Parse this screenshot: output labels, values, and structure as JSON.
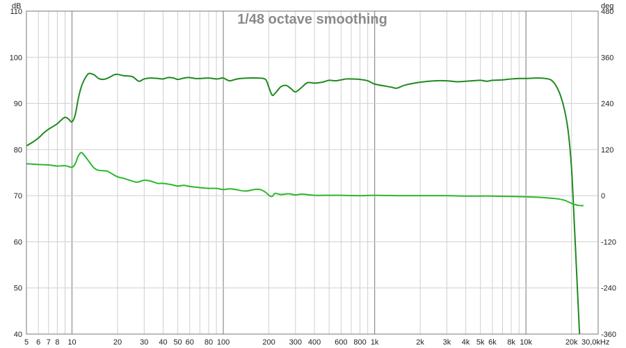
{
  "chart_data": {
    "type": "line",
    "title": "1/48 octave smoothing",
    "x_scale": "log",
    "xlim": [
      5,
      30000
    ],
    "ylim_left": [
      40,
      110
    ],
    "ylim_right": [
      -360,
      480
    ],
    "left_unit": "dB",
    "right_unit": "deg",
    "grid": true,
    "x_ticks": [
      {
        "v": 5,
        "l": "5"
      },
      {
        "v": 6,
        "l": "6"
      },
      {
        "v": 7,
        "l": "7"
      },
      {
        "v": 8,
        "l": "8"
      },
      {
        "v": 10,
        "l": "10"
      },
      {
        "v": 20,
        "l": "20"
      },
      {
        "v": 30,
        "l": "30"
      },
      {
        "v": 40,
        "l": "40"
      },
      {
        "v": 50,
        "l": "50"
      },
      {
        "v": 60,
        "l": "60"
      },
      {
        "v": 80,
        "l": "80"
      },
      {
        "v": 100,
        "l": "100"
      },
      {
        "v": 200,
        "l": "200"
      },
      {
        "v": 300,
        "l": "300"
      },
      {
        "v": 400,
        "l": "400"
      },
      {
        "v": 600,
        "l": "600"
      },
      {
        "v": 800,
        "l": "800"
      },
      {
        "v": 1000,
        "l": "1k"
      },
      {
        "v": 2000,
        "l": "2k"
      },
      {
        "v": 3000,
        "l": "3k"
      },
      {
        "v": 4000,
        "l": "4k"
      },
      {
        "v": 5000,
        "l": "5k"
      },
      {
        "v": 6000,
        "l": "6k"
      },
      {
        "v": 8000,
        "l": "8k"
      },
      {
        "v": 10000,
        "l": "10k"
      },
      {
        "v": 20000,
        "l": "20k"
      },
      {
        "v": 30000,
        "l": "30,0kHz"
      }
    ],
    "y_ticks_left": [
      "40",
      "50",
      "60",
      "70",
      "80",
      "90",
      "100",
      "110"
    ],
    "y_ticks_right": [
      "-360",
      "-240",
      "-120",
      "0",
      "120",
      "240",
      "360",
      "480"
    ],
    "series": [
      {
        "axis": "left",
        "color": "#1e8a1e",
        "points": [
          [
            5,
            80.8
          ],
          [
            5.5,
            81.6
          ],
          [
            6,
            82.5
          ],
          [
            6.5,
            83.6
          ],
          [
            7,
            84.4
          ],
          [
            7.5,
            85.0
          ],
          [
            8,
            85.6
          ],
          [
            8.5,
            86.4
          ],
          [
            9,
            87.0
          ],
          [
            9.5,
            86.6
          ],
          [
            10,
            86.0
          ],
          [
            10.5,
            87.5
          ],
          [
            11,
            91.0
          ],
          [
            11.5,
            93.5
          ],
          [
            12,
            95.0
          ],
          [
            12.5,
            96.0
          ],
          [
            13,
            96.5
          ],
          [
            14,
            96.2
          ],
          [
            15,
            95.4
          ],
          [
            16,
            95.2
          ],
          [
            17,
            95.4
          ],
          [
            18,
            95.8
          ],
          [
            19,
            96.2
          ],
          [
            20,
            96.3
          ],
          [
            22,
            96.0
          ],
          [
            25,
            95.8
          ],
          [
            27,
            95.0
          ],
          [
            28,
            94.8
          ],
          [
            30,
            95.3
          ],
          [
            33,
            95.5
          ],
          [
            37,
            95.4
          ],
          [
            40,
            95.3
          ],
          [
            43,
            95.6
          ],
          [
            47,
            95.5
          ],
          [
            50,
            95.2
          ],
          [
            55,
            95.5
          ],
          [
            60,
            95.6
          ],
          [
            65,
            95.4
          ],
          [
            70,
            95.4
          ],
          [
            80,
            95.5
          ],
          [
            90,
            95.3
          ],
          [
            95,
            95.4
          ],
          [
            100,
            95.5
          ],
          [
            110,
            94.9
          ],
          [
            120,
            95.2
          ],
          [
            130,
            95.4
          ],
          [
            150,
            95.5
          ],
          [
            170,
            95.5
          ],
          [
            190,
            95.2
          ],
          [
            200,
            93.5
          ],
          [
            210,
            91.8
          ],
          [
            220,
            92.2
          ],
          [
            240,
            93.6
          ],
          [
            260,
            93.9
          ],
          [
            280,
            93.2
          ],
          [
            300,
            92.5
          ],
          [
            330,
            93.5
          ],
          [
            360,
            94.5
          ],
          [
            400,
            94.4
          ],
          [
            450,
            94.6
          ],
          [
            500,
            95.0
          ],
          [
            550,
            94.9
          ],
          [
            600,
            95.1
          ],
          [
            650,
            95.3
          ],
          [
            700,
            95.3
          ],
          [
            800,
            95.2
          ],
          [
            900,
            94.9
          ],
          [
            1000,
            94.2
          ],
          [
            1200,
            93.7
          ],
          [
            1300,
            93.5
          ],
          [
            1400,
            93.3
          ],
          [
            1600,
            94.0
          ],
          [
            2000,
            94.6
          ],
          [
            2500,
            94.9
          ],
          [
            3000,
            94.9
          ],
          [
            3500,
            94.7
          ],
          [
            4000,
            94.8
          ],
          [
            5000,
            95.0
          ],
          [
            5500,
            94.8
          ],
          [
            6000,
            95.0
          ],
          [
            7000,
            95.1
          ],
          [
            8000,
            95.3
          ],
          [
            9000,
            95.4
          ],
          [
            10000,
            95.4
          ],
          [
            12000,
            95.5
          ],
          [
            14000,
            95.3
          ],
          [
            15000,
            94.8
          ],
          [
            16000,
            93.5
          ],
          [
            17000,
            91.5
          ],
          [
            18000,
            88.5
          ],
          [
            19000,
            84.0
          ],
          [
            20000,
            76.0
          ],
          [
            21000,
            62.0
          ],
          [
            22000,
            48.0
          ],
          [
            22600,
            40.0
          ]
        ]
      },
      {
        "axis": "right",
        "color": "#2ab82a",
        "points": [
          [
            5,
            83
          ],
          [
            6,
            81
          ],
          [
            7,
            80
          ],
          [
            8,
            77
          ],
          [
            9,
            78
          ],
          [
            10,
            74
          ],
          [
            10.5,
            83
          ],
          [
            11,
            103
          ],
          [
            11.5,
            112
          ],
          [
            12,
            106
          ],
          [
            13,
            88
          ],
          [
            14,
            72
          ],
          [
            15,
            66
          ],
          [
            17,
            64
          ],
          [
            18,
            59
          ],
          [
            20,
            49
          ],
          [
            22,
            45
          ],
          [
            25,
            38
          ],
          [
            27,
            35
          ],
          [
            30,
            40
          ],
          [
            33,
            38
          ],
          [
            37,
            32
          ],
          [
            40,
            32
          ],
          [
            45,
            29
          ],
          [
            50,
            25
          ],
          [
            55,
            27
          ],
          [
            60,
            24
          ],
          [
            70,
            21
          ],
          [
            80,
            19
          ],
          [
            90,
            19
          ],
          [
            100,
            16
          ],
          [
            110,
            18
          ],
          [
            120,
            16
          ],
          [
            140,
            12
          ],
          [
            160,
            16
          ],
          [
            175,
            16
          ],
          [
            190,
            9
          ],
          [
            200,
            1
          ],
          [
            210,
            -2
          ],
          [
            220,
            6
          ],
          [
            240,
            3
          ],
          [
            270,
            5
          ],
          [
            300,
            2
          ],
          [
            330,
            4
          ],
          [
            400,
            1
          ],
          [
            500,
            1
          ],
          [
            600,
            1
          ],
          [
            800,
            0
          ],
          [
            1000,
            1
          ],
          [
            1500,
            0
          ],
          [
            2000,
            0
          ],
          [
            3000,
            0
          ],
          [
            4000,
            -1
          ],
          [
            5000,
            -1
          ],
          [
            6000,
            -1
          ],
          [
            8000,
            -2
          ],
          [
            10000,
            -3
          ],
          [
            12000,
            -4
          ],
          [
            14000,
            -6
          ],
          [
            16000,
            -8
          ],
          [
            18000,
            -12
          ],
          [
            20000,
            -20
          ],
          [
            22000,
            -25
          ],
          [
            24000,
            -26
          ]
        ]
      }
    ]
  }
}
